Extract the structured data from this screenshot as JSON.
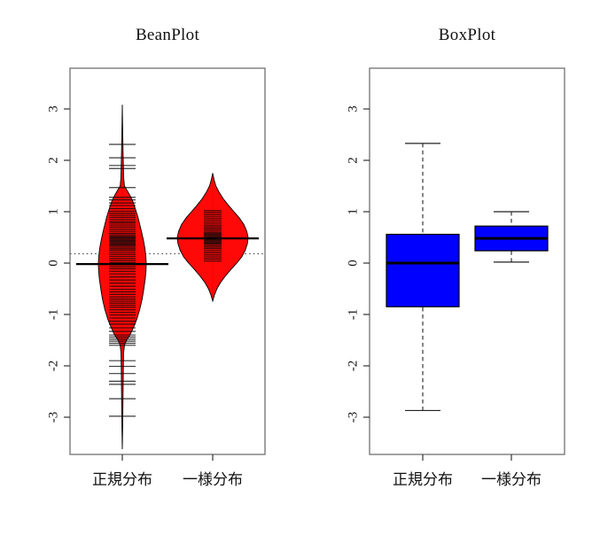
{
  "figure": {
    "background": "#ffffff",
    "panel_titles": [
      "BeanPlot",
      "BoxPlot"
    ]
  },
  "chart_data": [
    {
      "type": "violin",
      "title": "BeanPlot",
      "categories": [
        "正規分布",
        "一様分布"
      ],
      "xlabel": "",
      "ylabel": "",
      "yticks": [
        -3,
        -2,
        -1,
        0,
        1,
        2,
        3
      ],
      "ylim": [
        -3.75,
        3.8
      ],
      "grid": false,
      "fill_color": "#ff0000",
      "outline_color": "#000000",
      "overall_mean_line": {
        "value": 0.18,
        "style": "dotted"
      },
      "groups": [
        {
          "name": "正規分布",
          "mean_line": -0.02,
          "tail_range": [
            -3.62,
            3.08
          ],
          "violin_profile": [
            [
              3.08,
              0.0
            ],
            [
              2.6,
              0.015
            ],
            [
              2.2,
              0.03
            ],
            [
              1.9,
              0.045
            ],
            [
              1.65,
              0.06
            ],
            [
              1.5,
              0.09
            ],
            [
              1.4,
              0.22
            ],
            [
              1.3,
              0.34
            ],
            [
              1.2,
              0.44
            ],
            [
              1.05,
              0.55
            ],
            [
              0.9,
              0.65
            ],
            [
              0.75,
              0.73
            ],
            [
              0.6,
              0.81
            ],
            [
              0.45,
              0.88
            ],
            [
              0.3,
              0.94
            ],
            [
              0.15,
              0.98
            ],
            [
              0.0,
              1.0
            ],
            [
              -0.15,
              0.99
            ],
            [
              -0.3,
              0.96
            ],
            [
              -0.5,
              0.9
            ],
            [
              -0.7,
              0.83
            ],
            [
              -0.9,
              0.73
            ],
            [
              -1.1,
              0.6
            ],
            [
              -1.25,
              0.47
            ],
            [
              -1.4,
              0.32
            ],
            [
              -1.5,
              0.18
            ],
            [
              -1.6,
              0.09
            ],
            [
              -1.75,
              0.055
            ],
            [
              -2.0,
              0.045
            ],
            [
              -2.4,
              0.035
            ],
            [
              -2.8,
              0.025
            ],
            [
              -3.2,
              0.015
            ],
            [
              -3.62,
              0.0
            ]
          ],
          "data_lines": [
            2.31,
            2.05,
            1.9,
            1.84,
            1.47,
            1.28,
            1.23,
            1.17,
            1.12,
            1.06,
            1.01,
            0.97,
            0.93,
            0.89,
            0.85,
            0.81,
            0.78,
            0.74,
            0.7,
            0.66,
            0.62,
            0.58,
            0.55,
            0.52,
            0.5,
            0.48,
            0.46,
            0.44,
            0.42,
            0.4,
            0.38,
            0.36,
            0.34,
            0.31,
            0.28,
            0.25,
            0.21,
            0.17,
            0.13,
            0.09,
            0.05,
            0.01,
            -0.03,
            -0.07,
            -0.11,
            -0.16,
            -0.21,
            -0.27,
            -0.33,
            -0.39,
            -0.45,
            -0.51,
            -0.56,
            -0.61,
            -0.66,
            -0.7,
            -0.74,
            -0.78,
            -0.82,
            -0.86,
            -0.91,
            -0.96,
            -1.01,
            -1.07,
            -1.13,
            -1.19,
            -1.26,
            -1.33,
            -1.4,
            -1.44,
            -1.48,
            -1.52,
            -1.56,
            -1.6,
            -1.9,
            -2.01,
            -2.15,
            -2.3,
            -2.36,
            -2.64,
            -2.98
          ]
        },
        {
          "name": "一様分布",
          "mean_line": 0.48,
          "tail_range": [
            -0.74,
            1.75
          ],
          "violin_profile": [
            [
              1.75,
              0.0
            ],
            [
              1.62,
              0.04
            ],
            [
              1.5,
              0.09
            ],
            [
              1.38,
              0.18
            ],
            [
              1.25,
              0.3
            ],
            [
              1.12,
              0.45
            ],
            [
              1.0,
              0.6
            ],
            [
              0.88,
              0.75
            ],
            [
              0.75,
              0.88
            ],
            [
              0.62,
              0.96
            ],
            [
              0.5,
              1.0
            ],
            [
              0.38,
              0.98
            ],
            [
              0.25,
              0.92
            ],
            [
              0.12,
              0.82
            ],
            [
              0.0,
              0.68
            ],
            [
              -0.12,
              0.52
            ],
            [
              -0.25,
              0.36
            ],
            [
              -0.38,
              0.22
            ],
            [
              -0.5,
              0.12
            ],
            [
              -0.62,
              0.05
            ],
            [
              -0.74,
              0.0
            ]
          ],
          "data_lines": [
            1.02,
            0.98,
            0.94,
            0.9,
            0.86,
            0.82,
            0.78,
            0.74,
            0.71,
            0.68,
            0.65,
            0.62,
            0.59,
            0.57,
            0.55,
            0.53,
            0.51,
            0.49,
            0.47,
            0.45,
            0.43,
            0.41,
            0.39,
            0.37,
            0.34,
            0.31,
            0.28,
            0.24,
            0.2,
            0.16,
            0.12,
            0.08,
            0.04
          ]
        }
      ]
    },
    {
      "type": "boxplot",
      "title": "BoxPlot",
      "categories": [
        "正規分布",
        "一様分布"
      ],
      "xlabel": "",
      "ylabel": "",
      "yticks": [
        -3,
        -2,
        -1,
        0,
        1,
        2,
        3
      ],
      "ylim": [
        -3.75,
        3.8
      ],
      "grid": false,
      "fill_color": "#0000ff",
      "outline_color": "#000000",
      "whisker_style": "dashed",
      "groups": [
        {
          "name": "正規分布",
          "median": 0.0,
          "q1": -0.85,
          "q3": 0.56,
          "whisker_low": -2.87,
          "whisker_high": 2.33
        },
        {
          "name": "一様分布",
          "median": 0.48,
          "q1": 0.24,
          "q3": 0.72,
          "whisker_low": 0.02,
          "whisker_high": 1.0
        }
      ]
    }
  ]
}
